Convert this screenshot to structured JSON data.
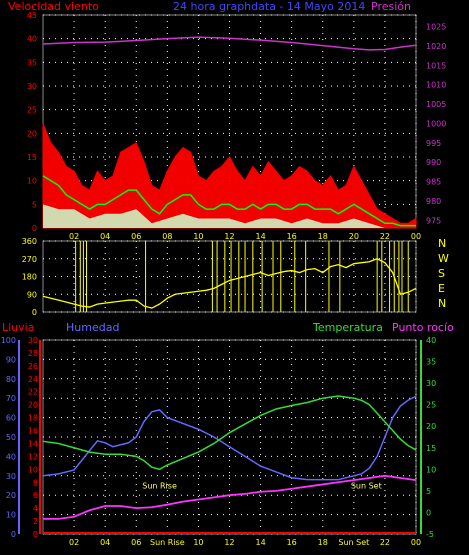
{
  "colors": {
    "wind": "#ff0000",
    "gust_fill": "#ff0000",
    "avg_wind": "#00ff00",
    "min_wind": "#ccffcc",
    "pressure": "#cc33cc",
    "direction": "#ffff00",
    "rain": "#ff0000",
    "humidity": "#6666ff",
    "temperature": "#33dd33",
    "dewpoint": "#ff33ff",
    "grid": "#ffffff",
    "axis_text": "#ffff00",
    "sun_text": "#ffff66"
  },
  "chart_data": [
    {
      "type": "line",
      "id": "wind-pressure",
      "title": "24 hora graphdata - 14 Mayo 2014",
      "left_axis_label": "Velocidad viento",
      "right_axis_label": "Presión",
      "x_ticks": [
        "02",
        "04",
        "06",
        "08",
        "10",
        "12",
        "14",
        "16",
        "18",
        "20",
        "22",
        "00"
      ],
      "x_range": [
        0,
        24
      ],
      "y_left_range": [
        0,
        45
      ],
      "y_left_ticks": [
        0,
        5,
        10,
        15,
        20,
        25,
        30,
        35,
        40,
        45
      ],
      "y_right_range": [
        973,
        1028
      ],
      "y_right_ticks": [
        975,
        980,
        985,
        990,
        995,
        1000,
        1005,
        1010,
        1015,
        1020,
        1025
      ],
      "series": [
        {
          "key": "gust",
          "axis": "left",
          "x": [
            0,
            0.5,
            1,
            1.5,
            2,
            2.5,
            3,
            3.5,
            4,
            4.5,
            5,
            5.5,
            6,
            6.5,
            7,
            7.5,
            8,
            8.5,
            9,
            9.5,
            10,
            10.5,
            11,
            11.5,
            12,
            12.5,
            13,
            13.5,
            14,
            14.5,
            15,
            15.5,
            16,
            16.5,
            17,
            17.5,
            18,
            18.5,
            19,
            19.5,
            20,
            20.5,
            21,
            21.5,
            22,
            22.5,
            23,
            23.5,
            24
          ],
          "values": [
            22,
            18,
            16,
            13,
            12,
            9,
            8,
            12,
            10,
            11,
            16,
            17,
            18,
            14,
            9,
            8,
            12,
            15,
            17,
            16,
            11,
            10,
            12,
            13,
            15,
            12,
            10,
            13,
            11,
            14,
            12,
            10,
            11,
            13,
            12,
            10,
            9,
            11,
            8,
            9,
            13,
            10,
            7,
            4,
            3,
            2,
            1,
            1,
            2
          ]
        },
        {
          "key": "avg_wind",
          "axis": "left",
          "x": [
            0,
            0.5,
            1,
            1.5,
            2,
            2.5,
            3,
            3.5,
            4,
            4.5,
            5,
            5.5,
            6,
            6.5,
            7,
            7.5,
            8,
            8.5,
            9,
            9.5,
            10,
            10.5,
            11,
            11.5,
            12,
            12.5,
            13,
            13.5,
            14,
            14.5,
            15,
            15.5,
            16,
            16.5,
            17,
            17.5,
            18,
            18.5,
            19,
            19.5,
            20,
            20.5,
            21,
            21.5,
            22,
            22.5,
            23,
            23.5,
            24
          ],
          "values": [
            11,
            10,
            9,
            7,
            6,
            5,
            4,
            5,
            5,
            6,
            7,
            8,
            8,
            6,
            4,
            3,
            5,
            6,
            7,
            7,
            5,
            4,
            4,
            5,
            5,
            4,
            4,
            5,
            4,
            5,
            5,
            4,
            4,
            5,
            5,
            4,
            4,
            4,
            3,
            4,
            5,
            4,
            3,
            2,
            1,
            1,
            0.5,
            0.5,
            0.5
          ]
        },
        {
          "key": "min_wind",
          "axis": "left",
          "x": [
            0,
            1,
            2,
            3,
            4,
            5,
            6,
            7,
            8,
            9,
            10,
            11,
            12,
            13,
            14,
            15,
            16,
            17,
            18,
            19,
            20,
            21,
            22,
            23,
            24
          ],
          "values": [
            5,
            4,
            4,
            2,
            3,
            3,
            4,
            1,
            2,
            3,
            2,
            2,
            2,
            1,
            2,
            2,
            1,
            2,
            1,
            1,
            2,
            1,
            0,
            0,
            0
          ]
        },
        {
          "key": "pressure",
          "axis": "right",
          "x": [
            0,
            2,
            4,
            6,
            8,
            10,
            12,
            14,
            16,
            18,
            20,
            21,
            22,
            23,
            24
          ],
          "values": [
            1020.5,
            1020.9,
            1021.0,
            1021.4,
            1021.9,
            1022.3,
            1022.0,
            1021.5,
            1020.9,
            1020.1,
            1019.3,
            1019.0,
            1019.1,
            1019.7,
            1020.2
          ]
        }
      ]
    },
    {
      "type": "scatter",
      "id": "wind-direction",
      "y_ticks": [
        0,
        90,
        180,
        270,
        360
      ],
      "y_range": [
        0,
        360
      ],
      "compass_labels": [
        "N",
        "W",
        "S",
        "E",
        "N"
      ],
      "series": [
        {
          "key": "direction",
          "x": [
            0,
            0.5,
            1,
            1.5,
            2,
            2.5,
            3,
            3.5,
            4,
            4.5,
            5,
            5.5,
            6,
            6.5,
            7,
            7.5,
            8,
            8.5,
            9,
            9.5,
            10,
            10.5,
            11,
            11.5,
            12,
            12.5,
            13,
            13.5,
            14,
            14.5,
            15,
            15.5,
            16,
            16.5,
            17,
            17.5,
            18,
            18.5,
            19,
            19.5,
            20,
            20.5,
            21,
            21.5,
            22,
            22.5,
            23,
            23.5,
            24
          ],
          "values": [
            80,
            70,
            60,
            50,
            40,
            30,
            25,
            40,
            45,
            50,
            55,
            60,
            60,
            30,
            20,
            40,
            70,
            90,
            95,
            100,
            105,
            110,
            120,
            140,
            160,
            170,
            180,
            190,
            200,
            185,
            195,
            205,
            210,
            200,
            215,
            220,
            200,
            230,
            240,
            225,
            245,
            250,
            255,
            270,
            250,
            200,
            90,
            100,
            120
          ],
          "spikes_x": [
            2.1,
            2.4,
            2.6,
            2.8,
            6.6,
            10.9,
            11.2,
            11.7,
            12.1,
            12.6,
            13.0,
            13.5,
            14.1,
            14.8,
            15.3,
            16.2,
            16.9,
            18.4,
            19.1,
            21.5,
            21.8,
            22.3,
            22.6,
            22.9,
            23.1,
            23.5
          ]
        }
      ]
    },
    {
      "type": "line",
      "id": "humidity-temperature",
      "labels": {
        "rain": "Lluvia",
        "humidity": "Humedad",
        "temperature": "Temperatura",
        "dewpoint": "Punto rocío"
      },
      "x_ticks": [
        "02",
        "04",
        "06",
        "Sun Rise",
        "10",
        "12",
        "14",
        "16",
        "18",
        "Sun Set",
        "22",
        "00"
      ],
      "x_range": [
        0,
        24
      ],
      "humidity_ticks": [
        0,
        10,
        20,
        30,
        40,
        50,
        60,
        70,
        80,
        90,
        100
      ],
      "rain_ticks": [
        0,
        2,
        4,
        6,
        8,
        10,
        12,
        14,
        16,
        18,
        20,
        22,
        24,
        26,
        28,
        30
      ],
      "temperature_ticks": [
        -5,
        0,
        5,
        10,
        15,
        20,
        25,
        30,
        35,
        40
      ],
      "humidity_range": [
        0,
        100
      ],
      "rain_range": [
        0,
        30
      ],
      "temperature_range": [
        -5,
        40
      ],
      "annotations": [
        {
          "text": "Sun Rise",
          "x": 7.5,
          "y": 12
        },
        {
          "text": "Sun Set",
          "x": 20.8,
          "y": 12
        }
      ],
      "series": [
        {
          "key": "humidity",
          "axis": "humidity",
          "x": [
            0,
            1,
            2,
            3,
            3.5,
            4,
            4.5,
            5,
            5.5,
            6,
            6.5,
            7,
            7.5,
            8,
            9,
            10,
            11,
            12,
            13,
            14,
            15,
            16,
            17,
            18,
            19,
            20,
            20.5,
            21,
            21.5,
            22,
            22.5,
            23,
            23.5,
            24
          ],
          "values": [
            30,
            31,
            33,
            43,
            48,
            47,
            45,
            46,
            47,
            50,
            58,
            63,
            64,
            60,
            57,
            54,
            50,
            45,
            40,
            35,
            32,
            29,
            28,
            28,
            28,
            30,
            31,
            34,
            40,
            50,
            60,
            66,
            69,
            71
          ]
        },
        {
          "key": "temperature",
          "axis": "temperature",
          "x": [
            0,
            1,
            2,
            3,
            4,
            5,
            6,
            6.5,
            7,
            7.5,
            8,
            9,
            10,
            11,
            12,
            13,
            14,
            15,
            16,
            17,
            18,
            19,
            20,
            20.5,
            21,
            21.5,
            22,
            22.5,
            23,
            23.5,
            24
          ],
          "values": [
            16.5,
            16,
            15,
            14,
            13.5,
            13.5,
            13,
            12,
            10.5,
            10,
            11,
            12.5,
            14,
            16,
            18.5,
            20.5,
            22.5,
            24,
            24.8,
            25.5,
            26.5,
            27,
            26.5,
            26,
            25,
            23,
            21,
            19,
            17,
            15.5,
            14.5
          ]
        },
        {
          "key": "dewpoint",
          "axis": "temperature",
          "x": [
            0,
            1,
            2,
            3,
            4,
            5,
            6,
            7,
            8,
            9,
            10,
            11,
            12,
            13,
            14,
            15,
            16,
            17,
            18,
            19,
            20,
            21,
            22,
            23,
            24
          ],
          "values": [
            -1.5,
            -1.5,
            -1,
            0.5,
            1.5,
            1.5,
            1,
            1.2,
            1.8,
            2.5,
            3,
            3.5,
            4,
            4.3,
            4.8,
            5,
            5.5,
            6,
            6.5,
            7,
            7.5,
            8,
            8.5,
            8,
            7.5
          ]
        },
        {
          "key": "rain",
          "axis": "rain",
          "x": [
            0,
            24
          ],
          "values": [
            0,
            0
          ]
        }
      ]
    }
  ]
}
